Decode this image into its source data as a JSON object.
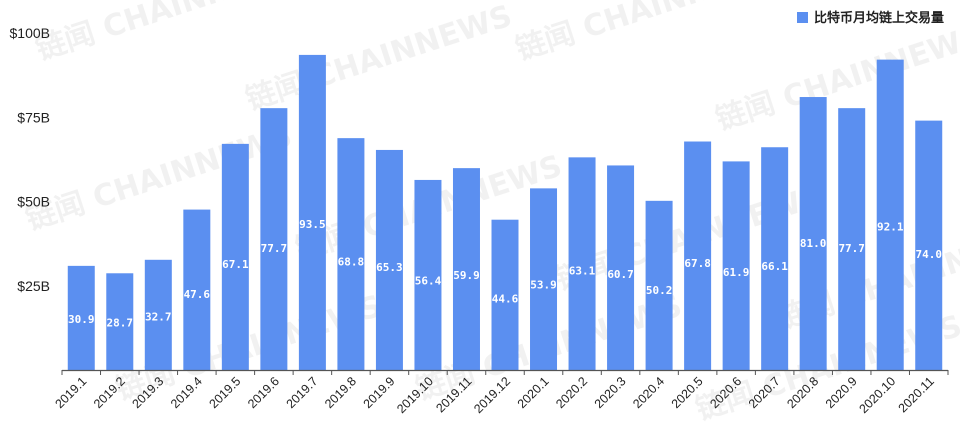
{
  "colors": {
    "bar": "#5b8ff0",
    "axis": "#555555",
    "text": "#222222"
  },
  "watermark": "链闻 CHAINNEWS",
  "chart_data": {
    "type": "bar",
    "title": "",
    "xlabel": "",
    "ylabel": "",
    "ylim": [
      0,
      100
    ],
    "y_ticks": [
      25,
      50,
      75,
      100
    ],
    "y_tick_labels": [
      "$25B",
      "$50B",
      "$75B",
      "$100B"
    ],
    "grid": false,
    "legend_position": "top-right",
    "categories": [
      "2019.1",
      "2019.2",
      "2019.3",
      "2019.4",
      "2019.5",
      "2019.6",
      "2019.7",
      "2019.8",
      "2019.9",
      "2019.10",
      "2019.11",
      "2019.12",
      "2020.1",
      "2020.2",
      "2020.3",
      "2020.4",
      "2020.5",
      "2020.6",
      "2020.7",
      "2020.8",
      "2020.9",
      "2020.10",
      "2020.11"
    ],
    "series": [
      {
        "name": "比特币月均链上交易量",
        "values": [
          30.9,
          28.7,
          32.7,
          47.6,
          67.1,
          77.7,
          93.5,
          68.8,
          65.3,
          56.4,
          59.9,
          44.6,
          53.9,
          63.1,
          60.7,
          50.2,
          67.8,
          61.9,
          66.1,
          81.0,
          77.7,
          92.1,
          74.0
        ],
        "value_labels": [
          "30.9",
          "28.7",
          "32.7",
          "47.6",
          "67.1",
          "77.7",
          "93.5",
          "68.8",
          "65.3",
          "56.4",
          "59.9",
          "44.6",
          "53.9",
          "63.1",
          "60.7",
          "50.2",
          "67.8",
          "61.9",
          "66.1",
          "81.0",
          "77.7",
          "92.1",
          "74.0"
        ]
      }
    ]
  }
}
